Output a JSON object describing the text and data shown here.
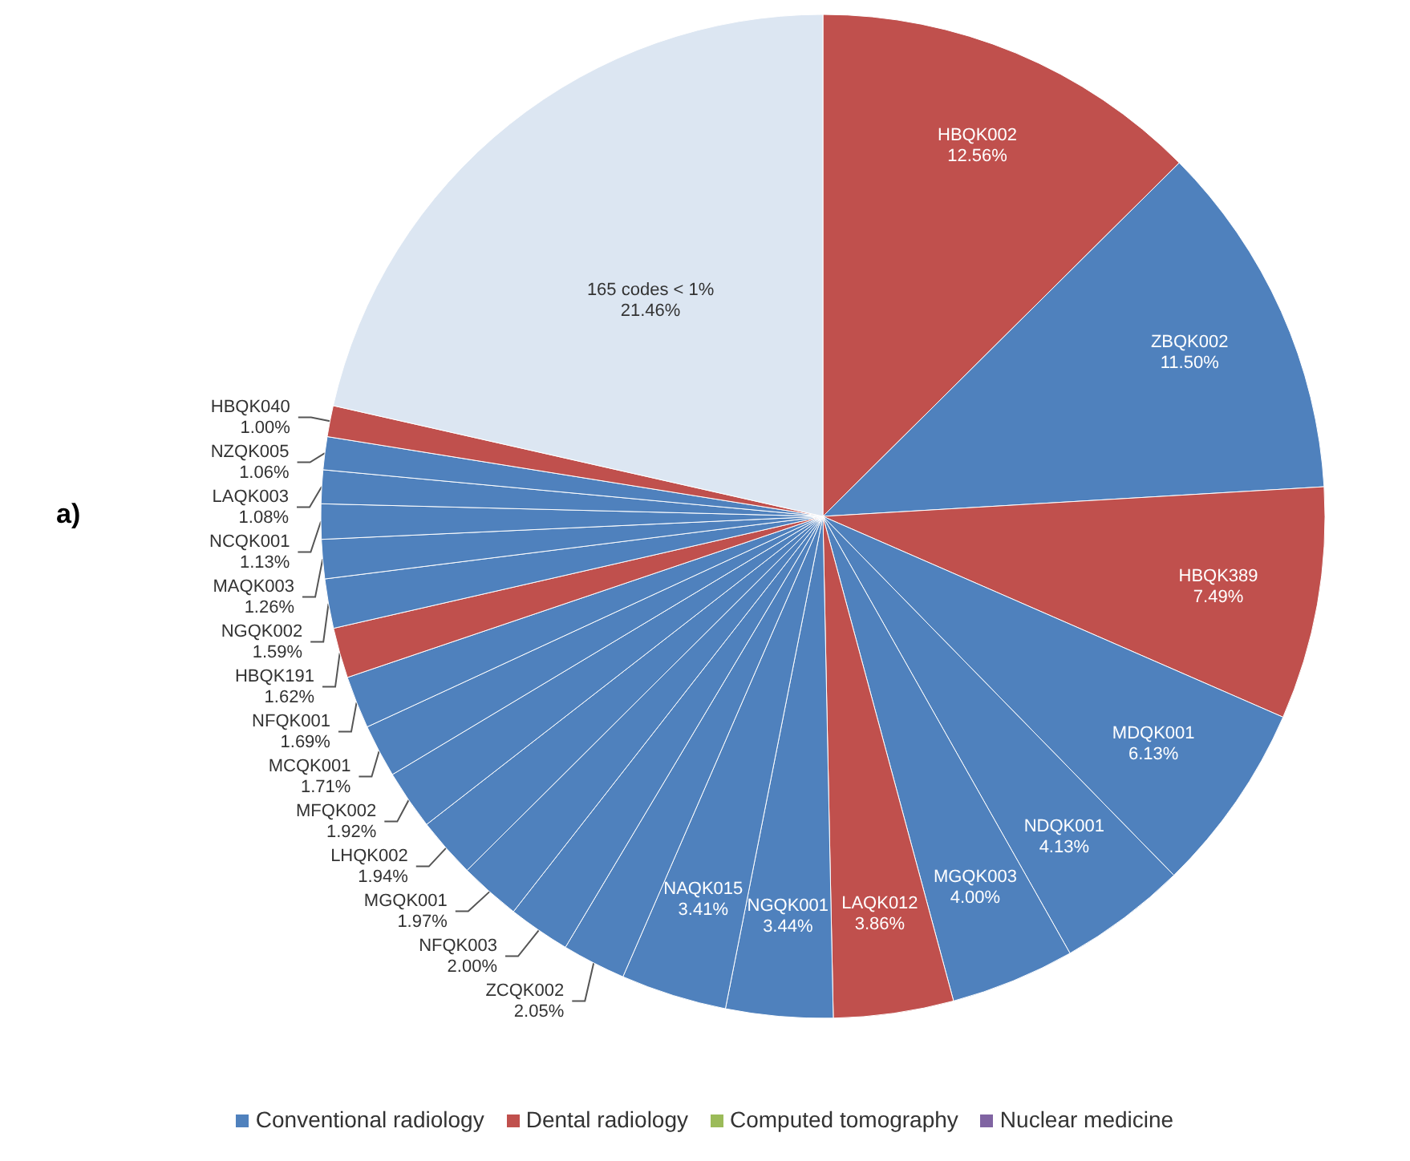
{
  "chart_data": {
    "type": "pie",
    "categories": [
      "HBQK002",
      "ZBQK002",
      "HBQK389",
      "MDQK001",
      "NDQK001",
      "MGQK003",
      "LAQK012",
      "NGQK001",
      "NAQK015",
      "ZCQK002",
      "NFQK003",
      "MGQK001",
      "LHQK002",
      "MFQK002",
      "MCQK001",
      "NFQK001",
      "HBQK191",
      "NGQK002",
      "MAQK003",
      "NCQK001",
      "LAQK003",
      "NZQK005",
      "HBQK040",
      "165 codes < 1%"
    ],
    "values": [
      12.56,
      11.5,
      7.49,
      6.13,
      4.13,
      4.0,
      3.86,
      3.44,
      3.41,
      2.05,
      2.0,
      1.97,
      1.94,
      1.92,
      1.71,
      1.69,
      1.62,
      1.59,
      1.26,
      1.13,
      1.08,
      1.06,
      1.0,
      21.46
    ],
    "colors": [
      "#c0504d",
      "#4f81bd",
      "#c0504d",
      "#4f81bd",
      "#4f81bd",
      "#4f81bd",
      "#c0504d",
      "#4f81bd",
      "#4f81bd",
      "#4f81bd",
      "#4f81bd",
      "#4f81bd",
      "#4f81bd",
      "#4f81bd",
      "#4f81bd",
      "#4f81bd",
      "#c0504d",
      "#4f81bd",
      "#4f81bd",
      "#4f81bd",
      "#4f81bd",
      "#4f81bd",
      "#c0504d",
      "#dce6f2"
    ],
    "value_labels": [
      "12.56%",
      "11.50%",
      "7.49%",
      "6.13%",
      "4.13%",
      "4.00%",
      "3.86%",
      "3.44%",
      "3.41%",
      "2.05%",
      "2.00%",
      "1.97%",
      "1.94%",
      "1.92%",
      "1.71%",
      "1.69%",
      "1.62%",
      "1.59%",
      "1.26%",
      "1.13%",
      "1.08%",
      "1.06%",
      "1.00%",
      "21.46%"
    ],
    "annotations": [
      "a)",
      "Conventional radiology",
      "Dental radiology",
      "Computed tomography",
      "Nuclear medicine"
    ]
  }
}
